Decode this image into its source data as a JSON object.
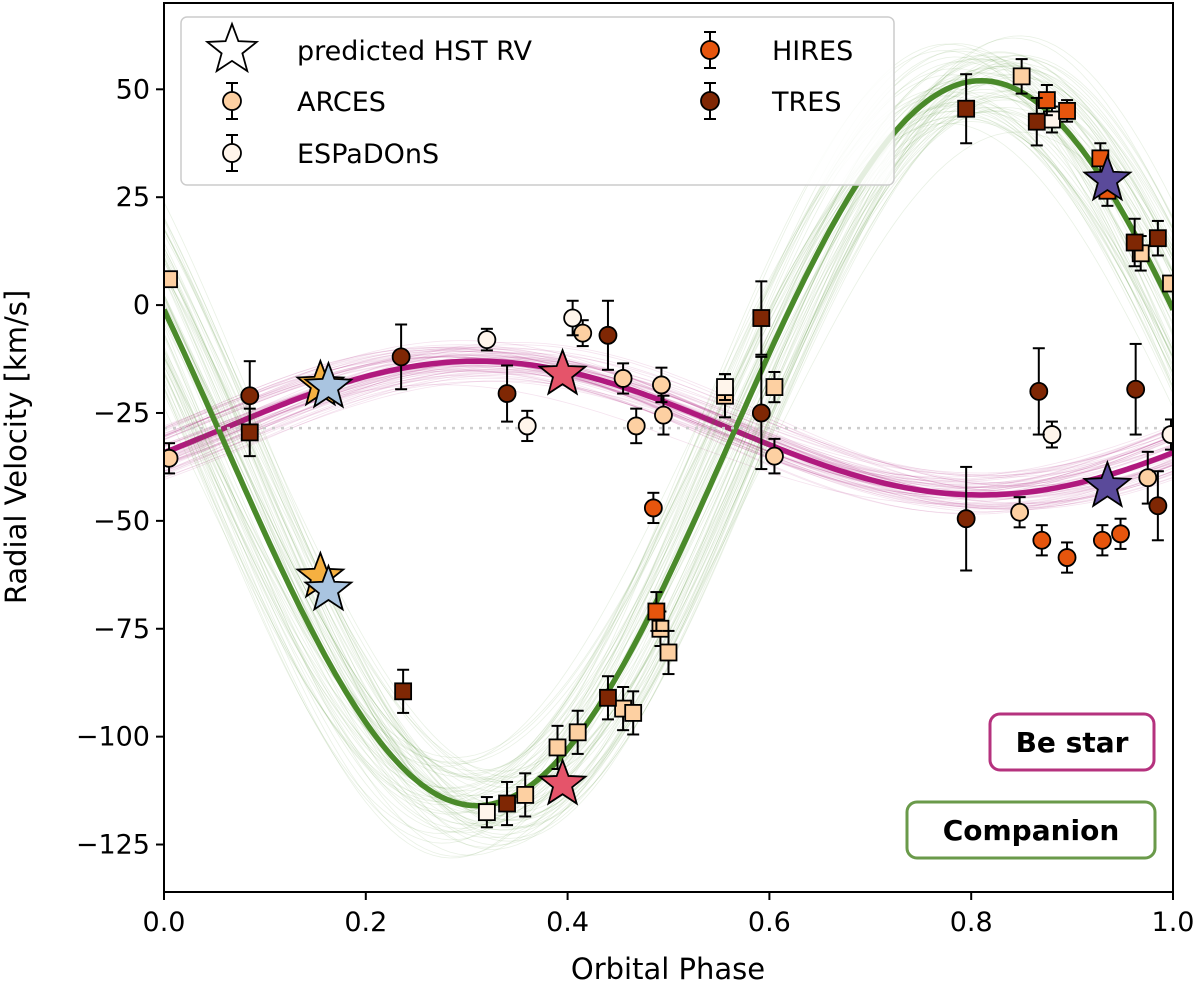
{
  "chart_data": {
    "type": "scatter",
    "title": "",
    "xlabel": "Orbital Phase",
    "ylabel": "Radial Velocity [km/s]",
    "xlim": [
      0.0,
      1.0
    ],
    "ylim": [
      -136,
      70
    ],
    "xticks": [
      0.0,
      0.2,
      0.4,
      0.6,
      0.8,
      1.0
    ],
    "xtick_labels": [
      "0.0",
      "0.2",
      "0.4",
      "0.6",
      "0.8",
      "1.0"
    ],
    "yticks": [
      50,
      25,
      0,
      -25,
      -50,
      -75,
      -100,
      -125
    ],
    "ytick_labels": [
      "50",
      "25",
      "0",
      "−25",
      "−50",
      "−75",
      "−100",
      "−125"
    ],
    "systemic_velocity": -28.5,
    "grid": false,
    "legend": {
      "location": "top-left",
      "entries": [
        {
          "label": "predicted HST RV",
          "marker": "star",
          "color": "#ffffff"
        },
        {
          "label": "ARCES",
          "marker": "circle",
          "color": "#fdd0a2"
        },
        {
          "label": "ESPaDOnS",
          "marker": "circle",
          "color": "#fff5eb"
        },
        {
          "label": "HIRES",
          "marker": "circle",
          "color": "#e6550d"
        },
        {
          "label": "TRES",
          "marker": "circle",
          "color": "#7f2704"
        }
      ]
    },
    "annotations": [
      {
        "text": "Be star",
        "color": "#b5327e",
        "position": "lower-right"
      },
      {
        "text": "Companion",
        "color": "#6a9a4a",
        "position": "bottom-right"
      }
    ],
    "curves": [
      {
        "name": "Be star",
        "color": "#b0197e",
        "amplitude": 15.5,
        "offset": -28.5,
        "phase_of_max": 0.31
      },
      {
        "name": "Companion",
        "color": "#4a8a2a",
        "amplitude": 84.0,
        "offset": -32.0,
        "phase_of_max": 0.81
      }
    ],
    "series": [
      {
        "name": "ARCES",
        "component": "Be star",
        "marker": "circle",
        "color": "#fdd0a2",
        "points": [
          [
            0.005,
            -35.5,
            3.5
          ],
          [
            0.415,
            -6.5,
            3
          ],
          [
            0.455,
            -17,
            3.5
          ],
          [
            0.468,
            -28,
            4
          ],
          [
            0.495,
            -25.5,
            4.5
          ],
          [
            0.493,
            -18.5,
            4
          ],
          [
            0.605,
            -35,
            4
          ],
          [
            0.848,
            -48,
            3.5
          ],
          [
            0.975,
            -40,
            6
          ]
        ],
        "x": [
          0.005,
          0.415,
          0.455,
          0.468,
          0.495,
          0.493,
          0.605,
          0.848,
          0.975
        ]
      },
      {
        "name": "ESPaDOnS",
        "component": "Be star",
        "marker": "circle",
        "color": "#fff5eb",
        "points": [
          [
            0.32,
            -8,
            2.5
          ],
          [
            0.36,
            -28,
            3.5
          ],
          [
            0.405,
            -3,
            4
          ],
          [
            0.88,
            -30,
            3
          ],
          [
            0.998,
            -30,
            3.5
          ]
        ],
        "x": [
          0.32,
          0.36,
          0.405,
          0.88,
          0.998
        ]
      },
      {
        "name": "HIRES",
        "component": "Be star",
        "marker": "circle",
        "color": "#e6550d",
        "points": [
          [
            0.485,
            -47,
            3.5
          ],
          [
            0.87,
            -54.5,
            3.5
          ],
          [
            0.895,
            -58.5,
            3.5
          ],
          [
            0.93,
            -54.5,
            3.5
          ],
          [
            0.948,
            -53,
            3.5
          ]
        ],
        "x": [
          0.485,
          0.87,
          0.895,
          0.93,
          0.948
        ]
      },
      {
        "name": "TRES",
        "component": "Be star",
        "marker": "circle",
        "color": "#7f2704",
        "points": [
          [
            0.085,
            -21,
            8
          ],
          [
            0.235,
            -12,
            7.5
          ],
          [
            0.34,
            -20.5,
            6.5
          ],
          [
            0.44,
            -7,
            8
          ],
          [
            0.592,
            -25,
            13
          ],
          [
            0.795,
            -49.5,
            12
          ],
          [
            0.867,
            -20,
            10
          ],
          [
            0.963,
            -19.5,
            10.5
          ],
          [
            0.985,
            -46.5,
            8
          ]
        ],
        "x": [
          0.085,
          0.235,
          0.34,
          0.44,
          0.592,
          0.795,
          0.867,
          0.963,
          0.985
        ]
      },
      {
        "name": "ARCES",
        "component": "Companion",
        "marker": "square",
        "color": "#fdd0a2",
        "points": [
          [
            0.005,
            6,
            0
          ],
          [
            0.358,
            -113.5,
            5
          ],
          [
            0.39,
            -102.5,
            5
          ],
          [
            0.41,
            -99,
            5
          ],
          [
            0.455,
            -93.5,
            5
          ],
          [
            0.465,
            -94.5,
            5
          ],
          [
            0.492,
            -75,
            4
          ],
          [
            0.5,
            -80.5,
            5
          ],
          [
            0.556,
            -21,
            5
          ],
          [
            0.605,
            -19,
            3.5
          ],
          [
            0.85,
            53,
            4
          ],
          [
            0.968,
            12,
            4
          ],
          [
            0.998,
            5,
            0
          ]
        ],
        "x": [
          0.005,
          0.358,
          0.39,
          0.41,
          0.455,
          0.465,
          0.492,
          0.5,
          0.556,
          0.605,
          0.85,
          0.968,
          0.998
        ]
      },
      {
        "name": "ESPaDOnS",
        "component": "Companion",
        "marker": "square",
        "color": "#fff5eb",
        "points": [
          [
            0.32,
            -117.5,
            3.5
          ],
          [
            0.556,
            -19,
            3
          ],
          [
            0.88,
            43,
            3
          ]
        ],
        "x": [
          0.32,
          0.556,
          0.88
        ]
      },
      {
        "name": "HIRES",
        "component": "Companion",
        "marker": "square",
        "color": "#e6550d",
        "points": [
          [
            0.488,
            -71,
            4.5
          ],
          [
            0.875,
            47.5,
            3.5
          ],
          [
            0.895,
            45,
            2.5
          ],
          [
            0.928,
            34,
            3.5
          ],
          [
            0.935,
            26.5,
            3.5
          ]
        ],
        "x": [
          0.488,
          0.875,
          0.895,
          0.928,
          0.935
        ]
      },
      {
        "name": "TRES",
        "component": "Companion",
        "marker": "square",
        "color": "#7f2704",
        "points": [
          [
            0.085,
            -29.5,
            5.5
          ],
          [
            0.237,
            -89.5,
            5
          ],
          [
            0.34,
            -115.5,
            5
          ],
          [
            0.44,
            -91,
            5
          ],
          [
            0.592,
            -3,
            8.5
          ],
          [
            0.795,
            45.5,
            8
          ],
          [
            0.865,
            42.5,
            5.5
          ],
          [
            0.962,
            14.5,
            5.5
          ],
          [
            0.985,
            15.5,
            4
          ]
        ],
        "x": [
          0.085,
          0.237,
          0.34,
          0.44,
          0.592,
          0.795,
          0.865,
          0.962,
          0.985
        ]
      },
      {
        "name": "predicted HST RV",
        "component": "Be star",
        "marker": "star",
        "points": [
          [
            0.155,
            -18.5,
            0,
            "#f5b041"
          ],
          [
            0.163,
            -19,
            0,
            "#a9c4e0"
          ],
          [
            0.395,
            -16,
            0,
            "#e5546a"
          ],
          [
            0.935,
            -42,
            0,
            "#5a4a9a"
          ]
        ],
        "x": [
          0.155,
          0.163,
          0.395,
          0.935
        ]
      },
      {
        "name": "predicted HST RV",
        "component": "Companion",
        "marker": "star",
        "points": [
          [
            0.155,
            -63,
            0,
            "#f5b041"
          ],
          [
            0.163,
            -66,
            0,
            "#a9c4e0"
          ],
          [
            0.395,
            -111,
            0,
            "#e5546a"
          ],
          [
            0.935,
            29,
            0,
            "#5a4a9a"
          ]
        ],
        "x": [
          0.155,
          0.163,
          0.395,
          0.935
        ]
      }
    ]
  }
}
